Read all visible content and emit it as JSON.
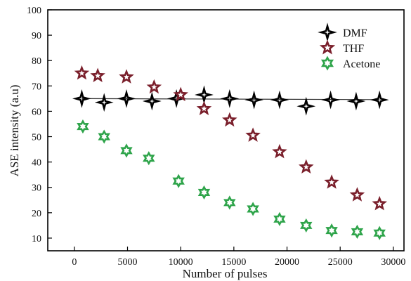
{
  "chart_data": {
    "type": "scatter",
    "xlabel": "Number of pulses",
    "ylabel": "ASE intensity (a.u)",
    "xlim": [
      -2500,
      31000
    ],
    "ylim": [
      5,
      100
    ],
    "x_ticks": [
      0,
      5000,
      10000,
      15000,
      20000,
      25000,
      30000
    ],
    "y_ticks": [
      10,
      20,
      30,
      40,
      50,
      60,
      70,
      80,
      90,
      100
    ],
    "grid": false,
    "legend_position": "top-right",
    "fit_curves": true,
    "series": [
      {
        "name": "DMF",
        "marker": "four-point-star",
        "color": "#000000",
        "x": [
          700,
          2800,
          4900,
          7300,
          9600,
          12200,
          14600,
          16900,
          19300,
          21800,
          24100,
          26500,
          28700
        ],
        "y": [
          65,
          63.5,
          65,
          64,
          65,
          66.5,
          65,
          64.5,
          64.5,
          62,
          64.5,
          64,
          64.5
        ],
        "fit": [
          65,
          64.6
        ]
      },
      {
        "name": "THF",
        "marker": "five-point-star",
        "color": "#7a1f2b",
        "x": [
          700,
          2200,
          4900,
          7500,
          10000,
          12200,
          14600,
          16800,
          19300,
          21800,
          24200,
          26600,
          28700
        ],
        "y": [
          75,
          74,
          73.5,
          69.5,
          66.5,
          61,
          56.5,
          50.5,
          44,
          38,
          32,
          27,
          23.5
        ]
      },
      {
        "name": "Acetone",
        "marker": "six-point-star",
        "color": "#2ea44a",
        "x": [
          800,
          2800,
          4900,
          7000,
          9800,
          12200,
          14600,
          16800,
          19300,
          21800,
          24200,
          26600,
          28700
        ],
        "y": [
          54,
          50,
          44.5,
          41.5,
          32.5,
          28,
          24,
          21.5,
          17.5,
          15,
          13,
          12.5,
          12
        ]
      }
    ]
  }
}
